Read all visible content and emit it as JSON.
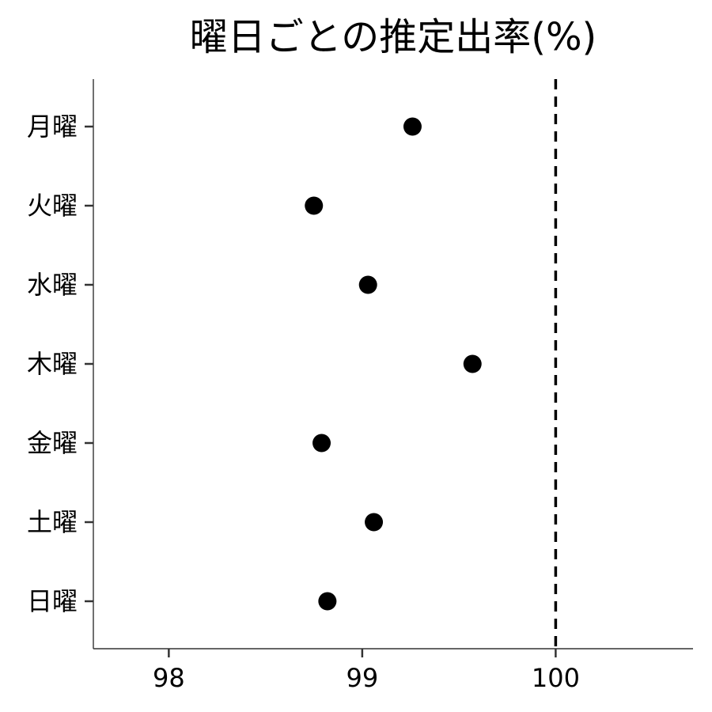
{
  "chart_data": {
    "type": "scatter",
    "title": "曜日ごとの推定出率(%)",
    "xlabel": "",
    "ylabel": "",
    "categories": [
      "月曜",
      "火曜",
      "水曜",
      "木曜",
      "金曜",
      "土曜",
      "日曜"
    ],
    "values": [
      99.26,
      98.75,
      99.03,
      99.57,
      98.79,
      99.06,
      98.82
    ],
    "xlim": [
      97.61,
      100.71
    ],
    "xticks": [
      "98",
      "99",
      "100"
    ],
    "reference_line": {
      "x": 100,
      "style": "dashed"
    },
    "grid": false,
    "legend": "none",
    "point_color": "#000000"
  }
}
